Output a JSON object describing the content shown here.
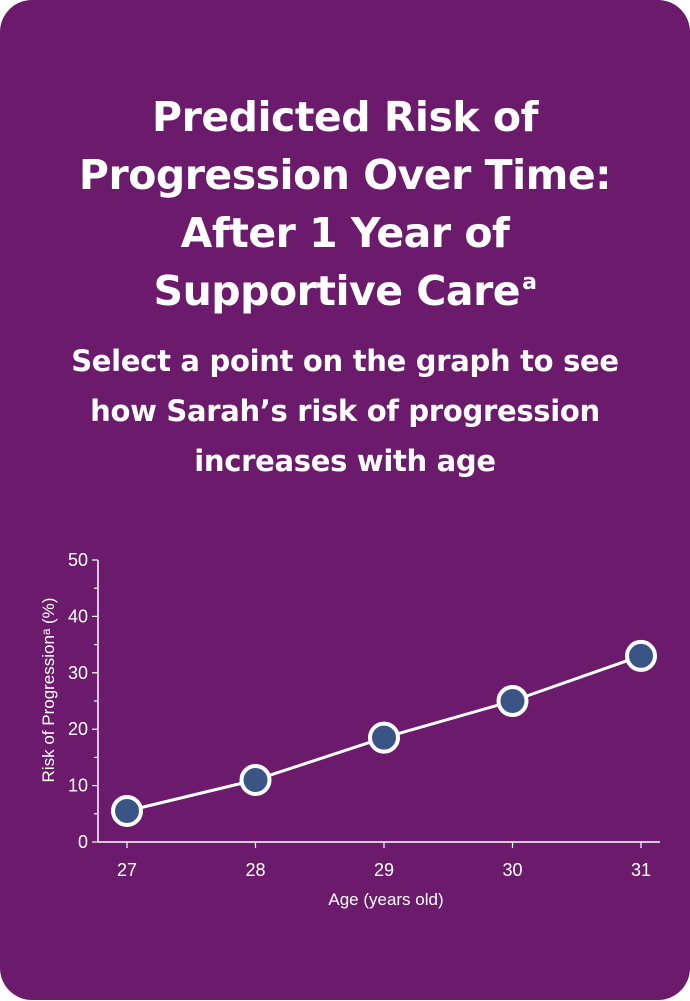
{
  "header": {
    "title": "Predicted Risk of Progression Over Time: After 1 Year of Supportive Care",
    "title_superscript": "a",
    "subtitle": "Select a point on the graph to see how Sarah’s risk of progression increases with age"
  },
  "colors": {
    "background": "#6b1a6c",
    "line": "#ffffff",
    "point_fill": "#3a5485",
    "point_stroke": "#ffffff"
  },
  "chart_data": {
    "type": "line",
    "xlabel": "Age (years old)",
    "ylabel": "Risk of Progressionᵃ (%)",
    "x": [
      27,
      28,
      29,
      30,
      31
    ],
    "y": [
      5.5,
      11,
      18.5,
      25,
      33
    ],
    "xlim": [
      27,
      31
    ],
    "ylim": [
      0,
      50
    ],
    "y_ticks": [
      0,
      10,
      20,
      30,
      40,
      50
    ],
    "x_ticks": [
      27,
      28,
      29,
      30,
      31
    ],
    "grid": false,
    "points_selectable": true
  }
}
